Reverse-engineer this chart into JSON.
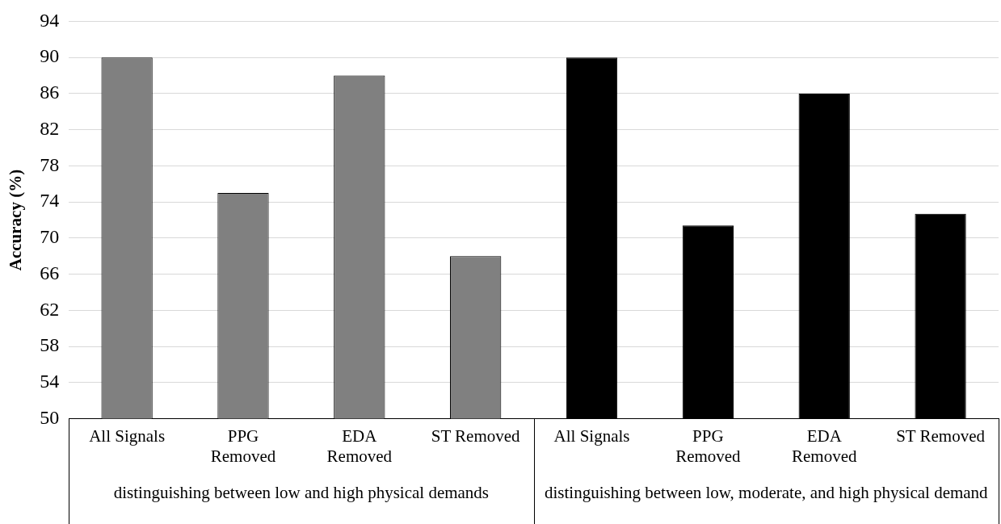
{
  "chart_data": {
    "type": "bar",
    "ylabel": "Accuracy (%)",
    "categories": [
      "All Signals",
      "PPG Removed",
      "EDA Removed",
      "ST Removed",
      "All Signals",
      "PPG Removed",
      "EDA Removed",
      "ST Removed"
    ],
    "values": [
      90,
      75,
      88,
      68,
      90,
      71.4,
      86,
      72.7
    ],
    "colors": [
      "#808080",
      "#808080",
      "#808080",
      "#808080",
      "#000000",
      "#000000",
      "#000000",
      "#000000"
    ],
    "ylim": [
      50,
      94
    ],
    "yticks": [
      50,
      54,
      58,
      62,
      66,
      70,
      74,
      78,
      82,
      86,
      90,
      94
    ],
    "grid": "y",
    "legend": false,
    "annotations": [
      "distinguishing between low and high physical demands",
      "distinguishing between low, moderate, and high physical demand"
    ]
  }
}
